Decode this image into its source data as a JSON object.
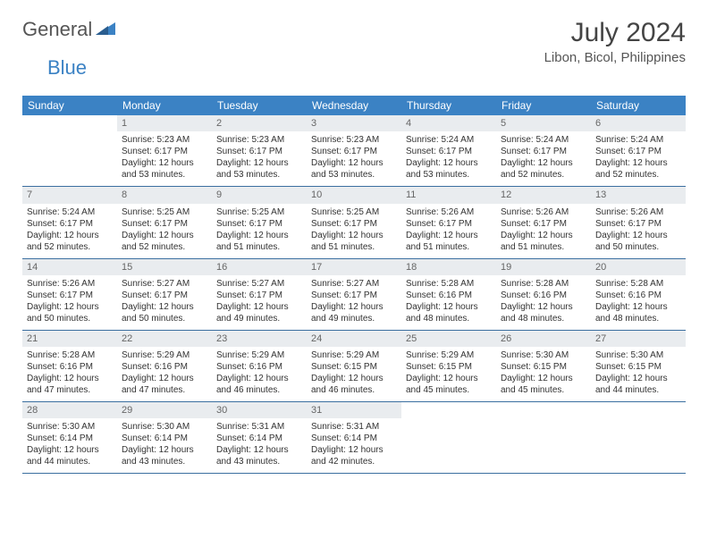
{
  "brand": {
    "part1": "General",
    "part2": "Blue"
  },
  "title": "July 2024",
  "location": "Libon, Bicol, Philippines",
  "colors": {
    "header_bg": "#3b82c4",
    "header_text": "#ffffff",
    "daynum_bg": "#e9ecef",
    "daynum_text": "#666666",
    "body_text": "#333333",
    "rule": "#3b6fa0",
    "brand_blue": "#3b82c4",
    "brand_gray": "#555555"
  },
  "day_names": [
    "Sunday",
    "Monday",
    "Tuesday",
    "Wednesday",
    "Thursday",
    "Friday",
    "Saturday"
  ],
  "first_weekday_index": 1,
  "days_in_month": 31,
  "days": {
    "1": {
      "sunrise": "5:23 AM",
      "sunset": "6:17 PM",
      "daylight": "12 hours and 53 minutes."
    },
    "2": {
      "sunrise": "5:23 AM",
      "sunset": "6:17 PM",
      "daylight": "12 hours and 53 minutes."
    },
    "3": {
      "sunrise": "5:23 AM",
      "sunset": "6:17 PM",
      "daylight": "12 hours and 53 minutes."
    },
    "4": {
      "sunrise": "5:24 AM",
      "sunset": "6:17 PM",
      "daylight": "12 hours and 53 minutes."
    },
    "5": {
      "sunrise": "5:24 AM",
      "sunset": "6:17 PM",
      "daylight": "12 hours and 52 minutes."
    },
    "6": {
      "sunrise": "5:24 AM",
      "sunset": "6:17 PM",
      "daylight": "12 hours and 52 minutes."
    },
    "7": {
      "sunrise": "5:24 AM",
      "sunset": "6:17 PM",
      "daylight": "12 hours and 52 minutes."
    },
    "8": {
      "sunrise": "5:25 AM",
      "sunset": "6:17 PM",
      "daylight": "12 hours and 52 minutes."
    },
    "9": {
      "sunrise": "5:25 AM",
      "sunset": "6:17 PM",
      "daylight": "12 hours and 51 minutes."
    },
    "10": {
      "sunrise": "5:25 AM",
      "sunset": "6:17 PM",
      "daylight": "12 hours and 51 minutes."
    },
    "11": {
      "sunrise": "5:26 AM",
      "sunset": "6:17 PM",
      "daylight": "12 hours and 51 minutes."
    },
    "12": {
      "sunrise": "5:26 AM",
      "sunset": "6:17 PM",
      "daylight": "12 hours and 51 minutes."
    },
    "13": {
      "sunrise": "5:26 AM",
      "sunset": "6:17 PM",
      "daylight": "12 hours and 50 minutes."
    },
    "14": {
      "sunrise": "5:26 AM",
      "sunset": "6:17 PM",
      "daylight": "12 hours and 50 minutes."
    },
    "15": {
      "sunrise": "5:27 AM",
      "sunset": "6:17 PM",
      "daylight": "12 hours and 50 minutes."
    },
    "16": {
      "sunrise": "5:27 AM",
      "sunset": "6:17 PM",
      "daylight": "12 hours and 49 minutes."
    },
    "17": {
      "sunrise": "5:27 AM",
      "sunset": "6:17 PM",
      "daylight": "12 hours and 49 minutes."
    },
    "18": {
      "sunrise": "5:28 AM",
      "sunset": "6:16 PM",
      "daylight": "12 hours and 48 minutes."
    },
    "19": {
      "sunrise": "5:28 AM",
      "sunset": "6:16 PM",
      "daylight": "12 hours and 48 minutes."
    },
    "20": {
      "sunrise": "5:28 AM",
      "sunset": "6:16 PM",
      "daylight": "12 hours and 48 minutes."
    },
    "21": {
      "sunrise": "5:28 AM",
      "sunset": "6:16 PM",
      "daylight": "12 hours and 47 minutes."
    },
    "22": {
      "sunrise": "5:29 AM",
      "sunset": "6:16 PM",
      "daylight": "12 hours and 47 minutes."
    },
    "23": {
      "sunrise": "5:29 AM",
      "sunset": "6:16 PM",
      "daylight": "12 hours and 46 minutes."
    },
    "24": {
      "sunrise": "5:29 AM",
      "sunset": "6:15 PM",
      "daylight": "12 hours and 46 minutes."
    },
    "25": {
      "sunrise": "5:29 AM",
      "sunset": "6:15 PM",
      "daylight": "12 hours and 45 minutes."
    },
    "26": {
      "sunrise": "5:30 AM",
      "sunset": "6:15 PM",
      "daylight": "12 hours and 45 minutes."
    },
    "27": {
      "sunrise": "5:30 AM",
      "sunset": "6:15 PM",
      "daylight": "12 hours and 44 minutes."
    },
    "28": {
      "sunrise": "5:30 AM",
      "sunset": "6:14 PM",
      "daylight": "12 hours and 44 minutes."
    },
    "29": {
      "sunrise": "5:30 AM",
      "sunset": "6:14 PM",
      "daylight": "12 hours and 43 minutes."
    },
    "30": {
      "sunrise": "5:31 AM",
      "sunset": "6:14 PM",
      "daylight": "12 hours and 43 minutes."
    },
    "31": {
      "sunrise": "5:31 AM",
      "sunset": "6:14 PM",
      "daylight": "12 hours and 42 minutes."
    }
  },
  "labels": {
    "sunrise_prefix": "Sunrise: ",
    "sunset_prefix": "Sunset: ",
    "daylight_prefix": "Daylight: "
  }
}
